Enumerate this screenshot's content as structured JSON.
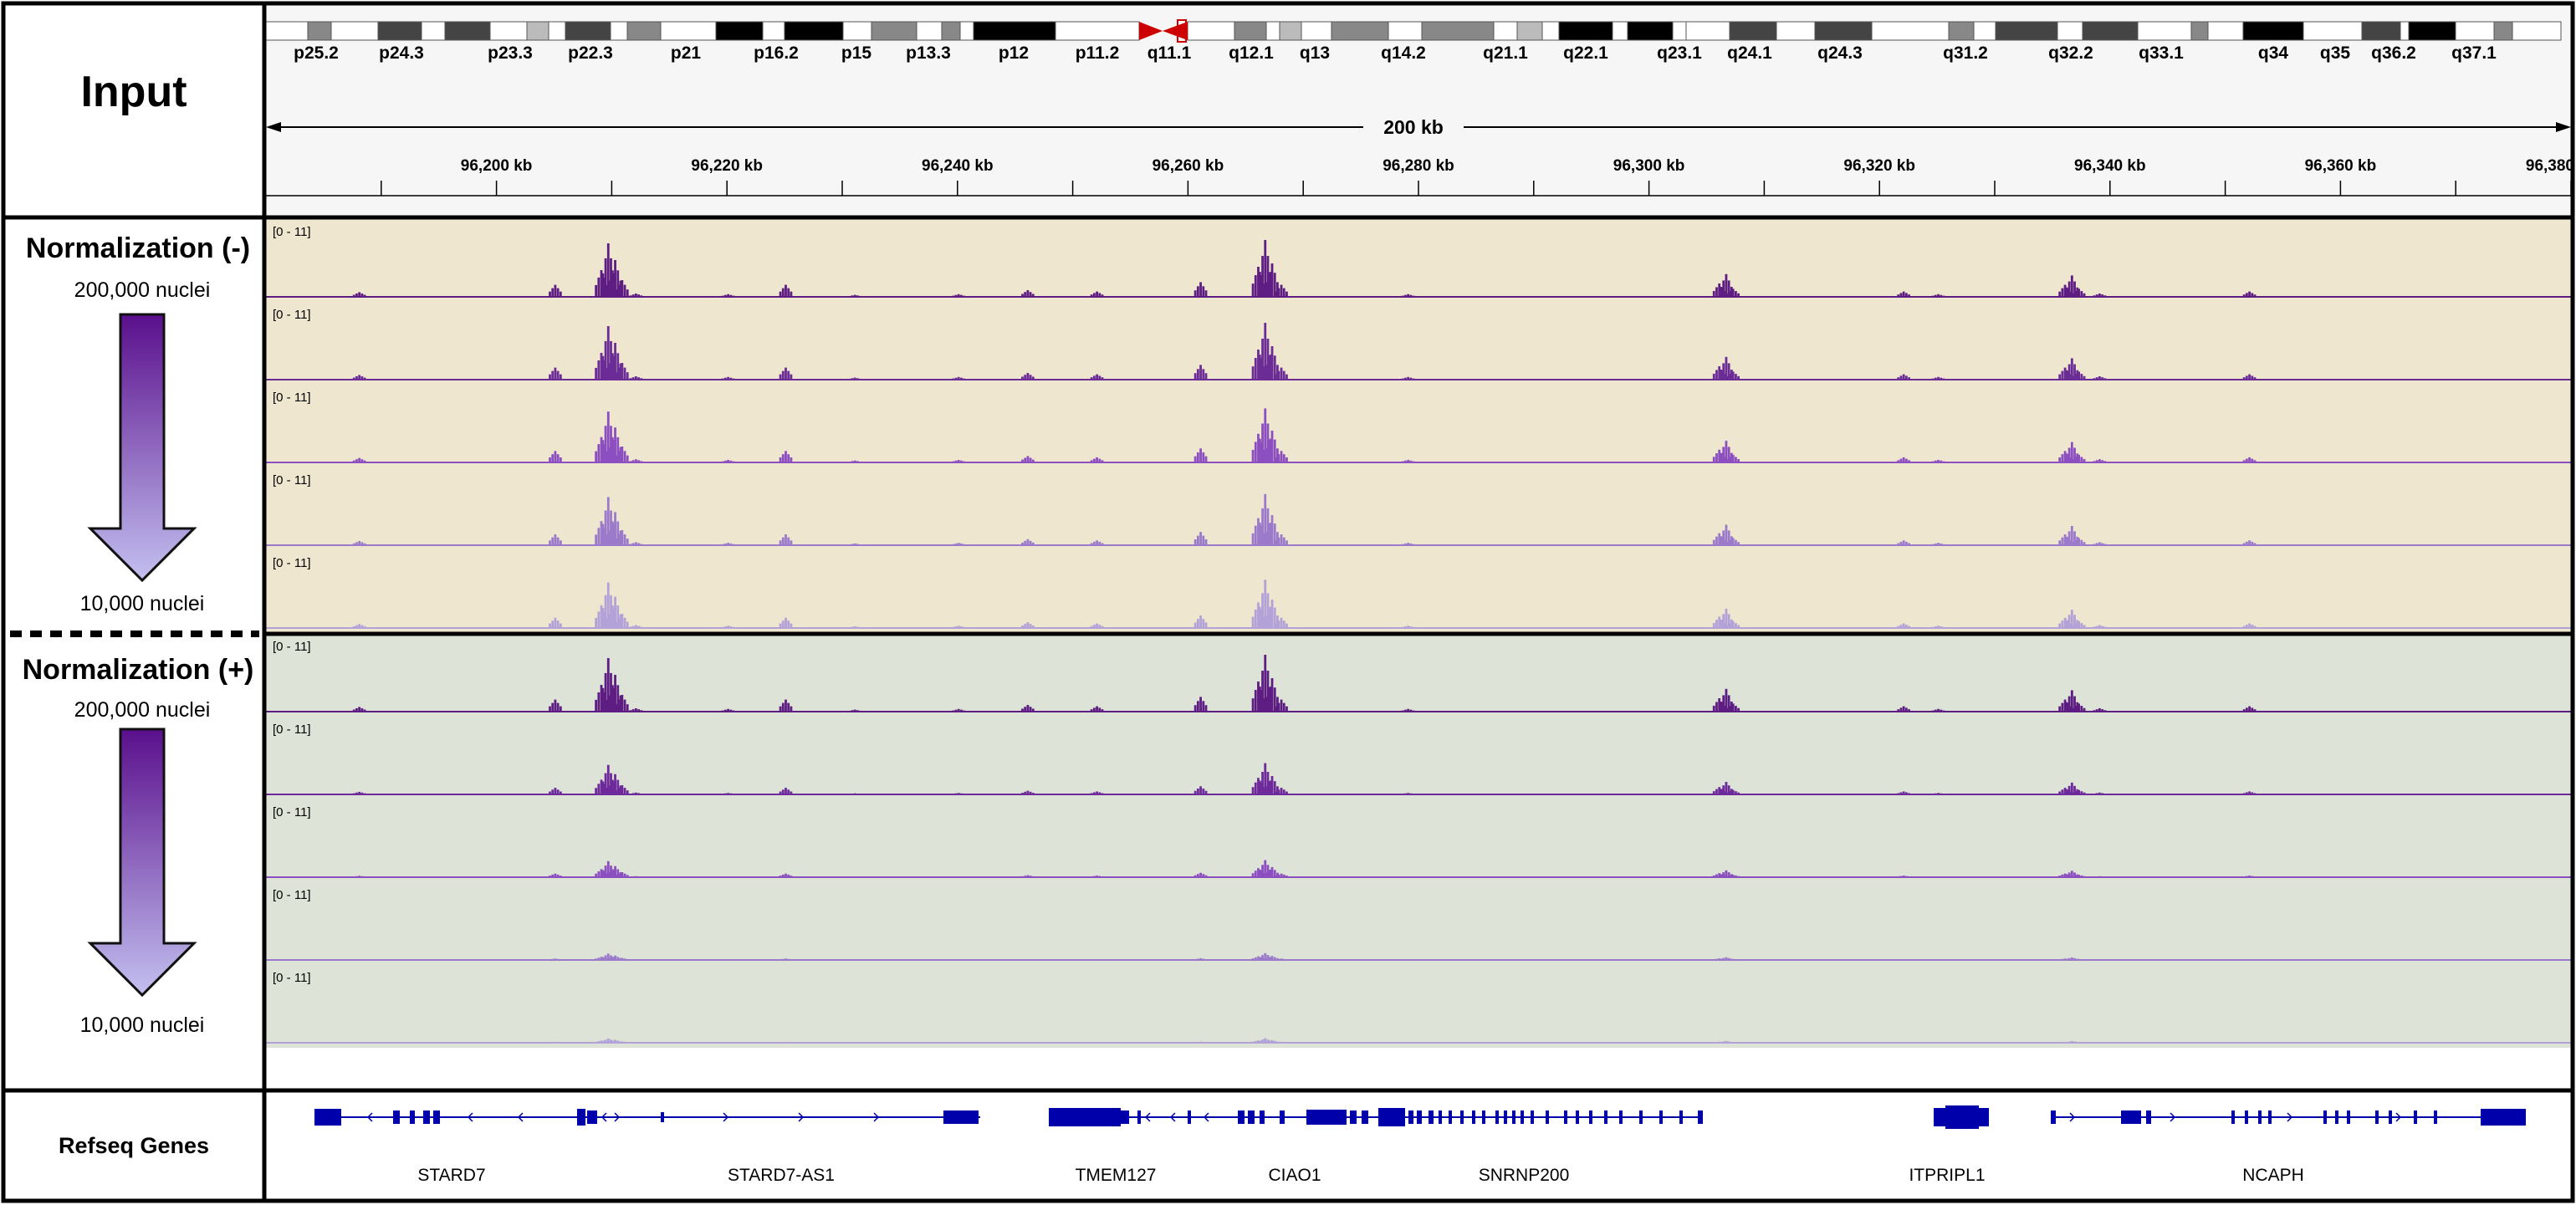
{
  "header": {
    "input_label": "Input",
    "refseq_label": "Refseq Genes"
  },
  "ideogram": {
    "bands": [
      "p25.2",
      "p24.3",
      "p23.3",
      "p22.3",
      "p21",
      "p16.2",
      "p15",
      "p13.3",
      "p12",
      "p11.2",
      "q11.1",
      "q12.1",
      "q13",
      "q14.2",
      "q21.1",
      "q22.1",
      "q23.1",
      "q24.1",
      "q24.3",
      "q31.2",
      "q32.2",
      "q33.1",
      "q34",
      "q35",
      "q36.2",
      "q37.1"
    ]
  },
  "ruler": {
    "span_label": "200 kb",
    "ticks": [
      "96,200 kb",
      "96,220 kb",
      "96,240 kb",
      "96,260 kb",
      "96,280 kb",
      "96,300 kb",
      "96,320 kb",
      "96,340 kb",
      "96,360 kb",
      "96,380"
    ]
  },
  "groups": [
    {
      "label": "Normalization (-)",
      "top_label": "200,000 nuclei",
      "bottom_label": "10,000 nuclei",
      "bg": "#efe6cf",
      "tracks": [
        {
          "range": "[0 - 11]",
          "color": "#5e1d82",
          "scale": 1.0
        },
        {
          "range": "[0 - 11]",
          "color": "#6b2c96",
          "scale": 1.0
        },
        {
          "range": "[0 - 11]",
          "color": "#8c4fc0",
          "scale": 0.95
        },
        {
          "range": "[0 - 11]",
          "color": "#9c7acb",
          "scale": 0.9
        },
        {
          "range": "[0 - 11]",
          "color": "#b2a2d8",
          "scale": 0.85
        }
      ]
    },
    {
      "label": "Normalization (+)",
      "top_label": "200,000 nuclei",
      "bottom_label": "10,000 nuclei",
      "bg": "#dde3d6",
      "tracks": [
        {
          "range": "[0 - 11]",
          "color": "#5e1d82",
          "scale": 1.0
        },
        {
          "range": "[0 - 11]",
          "color": "#6e2a9a",
          "scale": 0.55
        },
        {
          "range": "[0 - 11]",
          "color": "#8c4fc0",
          "scale": 0.3
        },
        {
          "range": "[0 - 11]",
          "color": "#9c7acb",
          "scale": 0.12
        },
        {
          "range": "[0 - 11]",
          "color": "#b2a2d8",
          "scale": 0.08
        }
      ]
    }
  ],
  "genes": [
    "STARD7",
    "STARD7-AS1",
    "TMEM127",
    "CIAO1",
    "SNRNP200",
    "ITPRIPL1",
    "NCAPH"
  ],
  "colors": {
    "gene": "#0000aa",
    "arrow_dark": "#5a0f8c",
    "arrow_light": "#c3c0f0",
    "centromere": "#cc0000"
  }
}
